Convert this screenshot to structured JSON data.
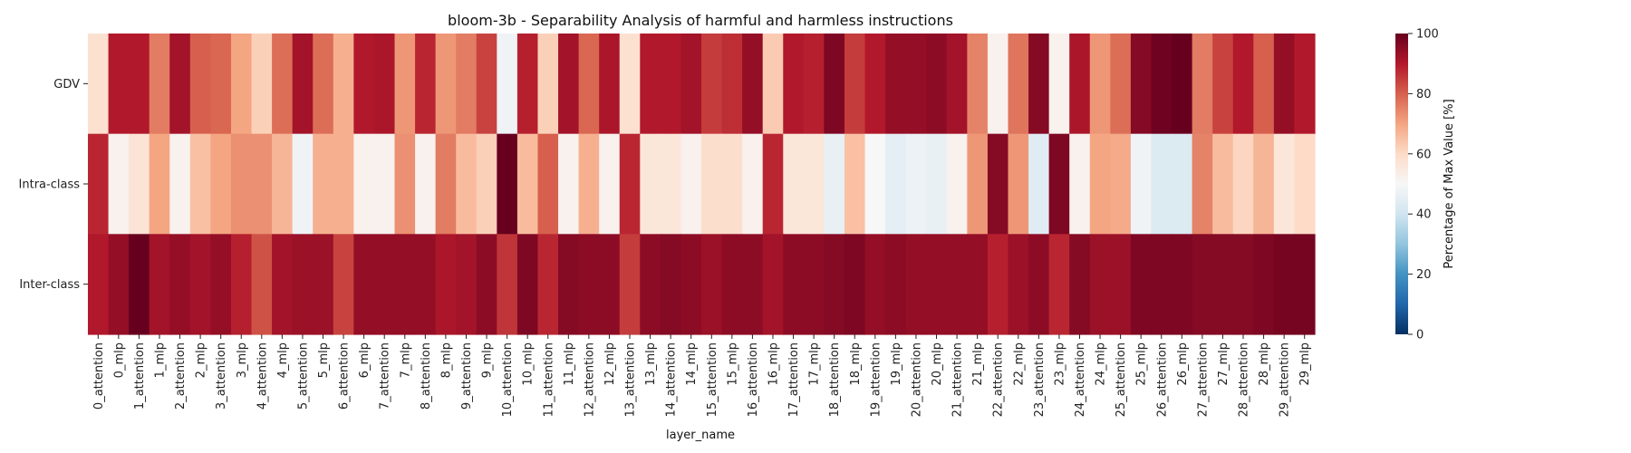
{
  "chart_data": {
    "type": "heatmap",
    "title": "bloom-3b - Separability Analysis of harmful and harmless instructions",
    "xlabel": "layer_name",
    "ylabel": "",
    "rows": [
      "GDV",
      "Intra-class",
      "Inter-class"
    ],
    "columns": [
      "0_attention",
      "0_mlp",
      "1_attention",
      "1_mlp",
      "2_attention",
      "2_mlp",
      "3_attention",
      "3_mlp",
      "4_attention",
      "4_mlp",
      "5_attention",
      "5_mlp",
      "6_attention",
      "6_mlp",
      "7_attention",
      "7_mlp",
      "8_attention",
      "8_mlp",
      "9_attention",
      "9_mlp",
      "10_attention",
      "10_mlp",
      "11_attention",
      "11_mlp",
      "12_attention",
      "12_mlp",
      "13_attention",
      "13_mlp",
      "14_attention",
      "14_mlp",
      "15_attention",
      "15_mlp",
      "16_attention",
      "16_mlp",
      "17_attention",
      "17_mlp",
      "18_attention",
      "18_mlp",
      "19_attention",
      "19_mlp",
      "20_attention",
      "20_mlp",
      "21_attention",
      "21_mlp",
      "22_attention",
      "22_mlp",
      "23_attention",
      "23_mlp",
      "24_attention",
      "24_mlp",
      "25_attention",
      "25_mlp",
      "26_attention",
      "26_mlp",
      "27_attention",
      "27_mlp",
      "28_attention",
      "28_mlp",
      "29_attention",
      "29_mlp"
    ],
    "values": [
      [
        58,
        90,
        90,
        76,
        92,
        80,
        79,
        70,
        62,
        78,
        92,
        78,
        68,
        90,
        91,
        72,
        88,
        72,
        76,
        84,
        48,
        89,
        62,
        92,
        79,
        91,
        58,
        90,
        90,
        92,
        85,
        87,
        94,
        63,
        90,
        89,
        97,
        85,
        90,
        94,
        94,
        95,
        92,
        75,
        52,
        77,
        96,
        52,
        91,
        72,
        78,
        96,
        99,
        100,
        76,
        84,
        90,
        80,
        94,
        90
      ],
      [
        88,
        52,
        57,
        70,
        52,
        65,
        70,
        73,
        73,
        67,
        48,
        68,
        68,
        52,
        52,
        73,
        52,
        76,
        66,
        62,
        100,
        66,
        80,
        52,
        68,
        52,
        88,
        56,
        56,
        52,
        59,
        59,
        52,
        88,
        56,
        56,
        46,
        65,
        50,
        45,
        47,
        46,
        52,
        72,
        96,
        72,
        44,
        97,
        52,
        70,
        69,
        48,
        43,
        43,
        75,
        66,
        61,
        67,
        56,
        60
      ],
      [
        90,
        94,
        100,
        92,
        94,
        92,
        94,
        89,
        82,
        92,
        93,
        93,
        84,
        94,
        94,
        94,
        94,
        91,
        92,
        95,
        86,
        97,
        88,
        96,
        95,
        95,
        85,
        95,
        96,
        95,
        93,
        95,
        95,
        92,
        95,
        95,
        96,
        97,
        94,
        95,
        94,
        94,
        94,
        94,
        89,
        93,
        95,
        88,
        96,
        93,
        93,
        97,
        97,
        97,
        96,
        96,
        96,
        97,
        98,
        98
      ]
    ],
    "colorbar": {
      "label": "Percentage of Max Value [%]",
      "ticks": [
        0,
        20,
        40,
        60,
        80,
        100
      ],
      "range": [
        0,
        100
      ],
      "colormap": "RdBu_r"
    }
  }
}
